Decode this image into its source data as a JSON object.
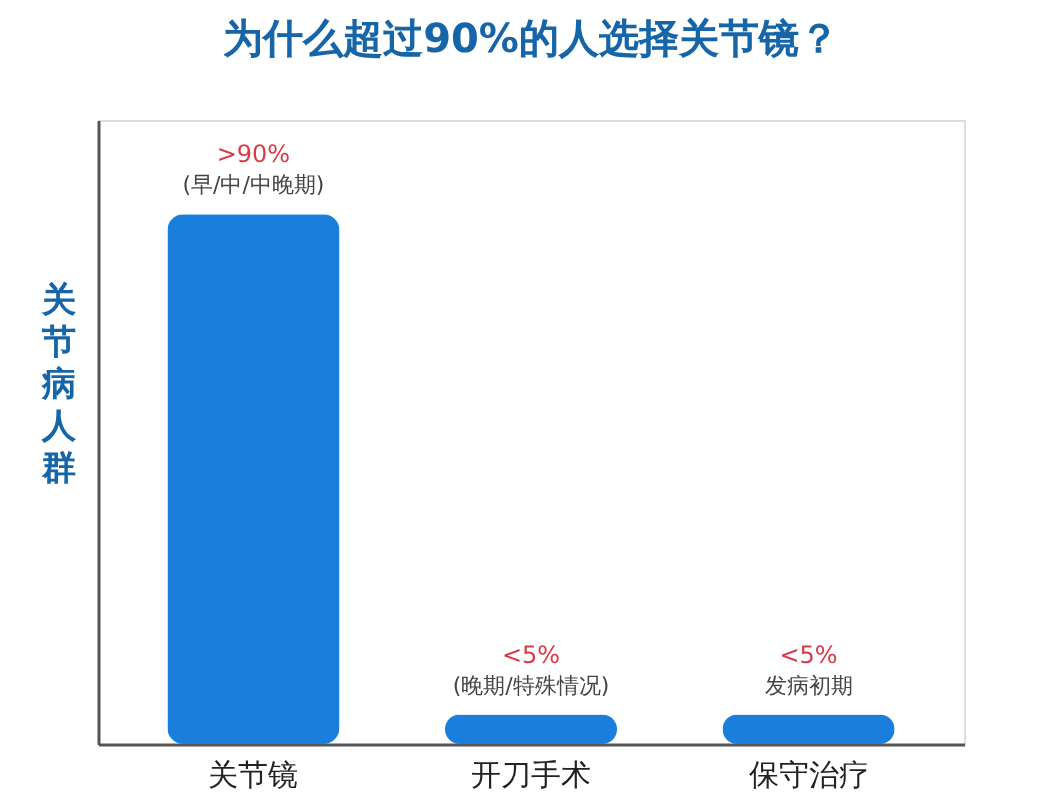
{
  "chart_data": {
    "type": "bar",
    "title": "为什么超过90%的人选择关节镜？",
    "ylabel": "关节病人群",
    "categories": [
      "关节镜",
      "开刀手术",
      "保守治疗"
    ],
    "values": [
      90,
      5,
      5
    ],
    "color": "#1a7fdc",
    "ylim": [
      0,
      106
    ],
    "tick_labels": "x",
    "value_labels": [
      ">90%",
      "<5%",
      "<5%"
    ],
    "annotations": [
      {
        "text": "(早/中/中晚期)",
        "x": "关节镜",
        "y": 90
      },
      {
        "text": "(晚期/特殊情况)",
        "x": "开刀手术",
        "y": 5
      },
      {
        "text": "发病初期",
        "x": "保守治疗",
        "y": 5
      }
    ],
    "grid": false
  }
}
